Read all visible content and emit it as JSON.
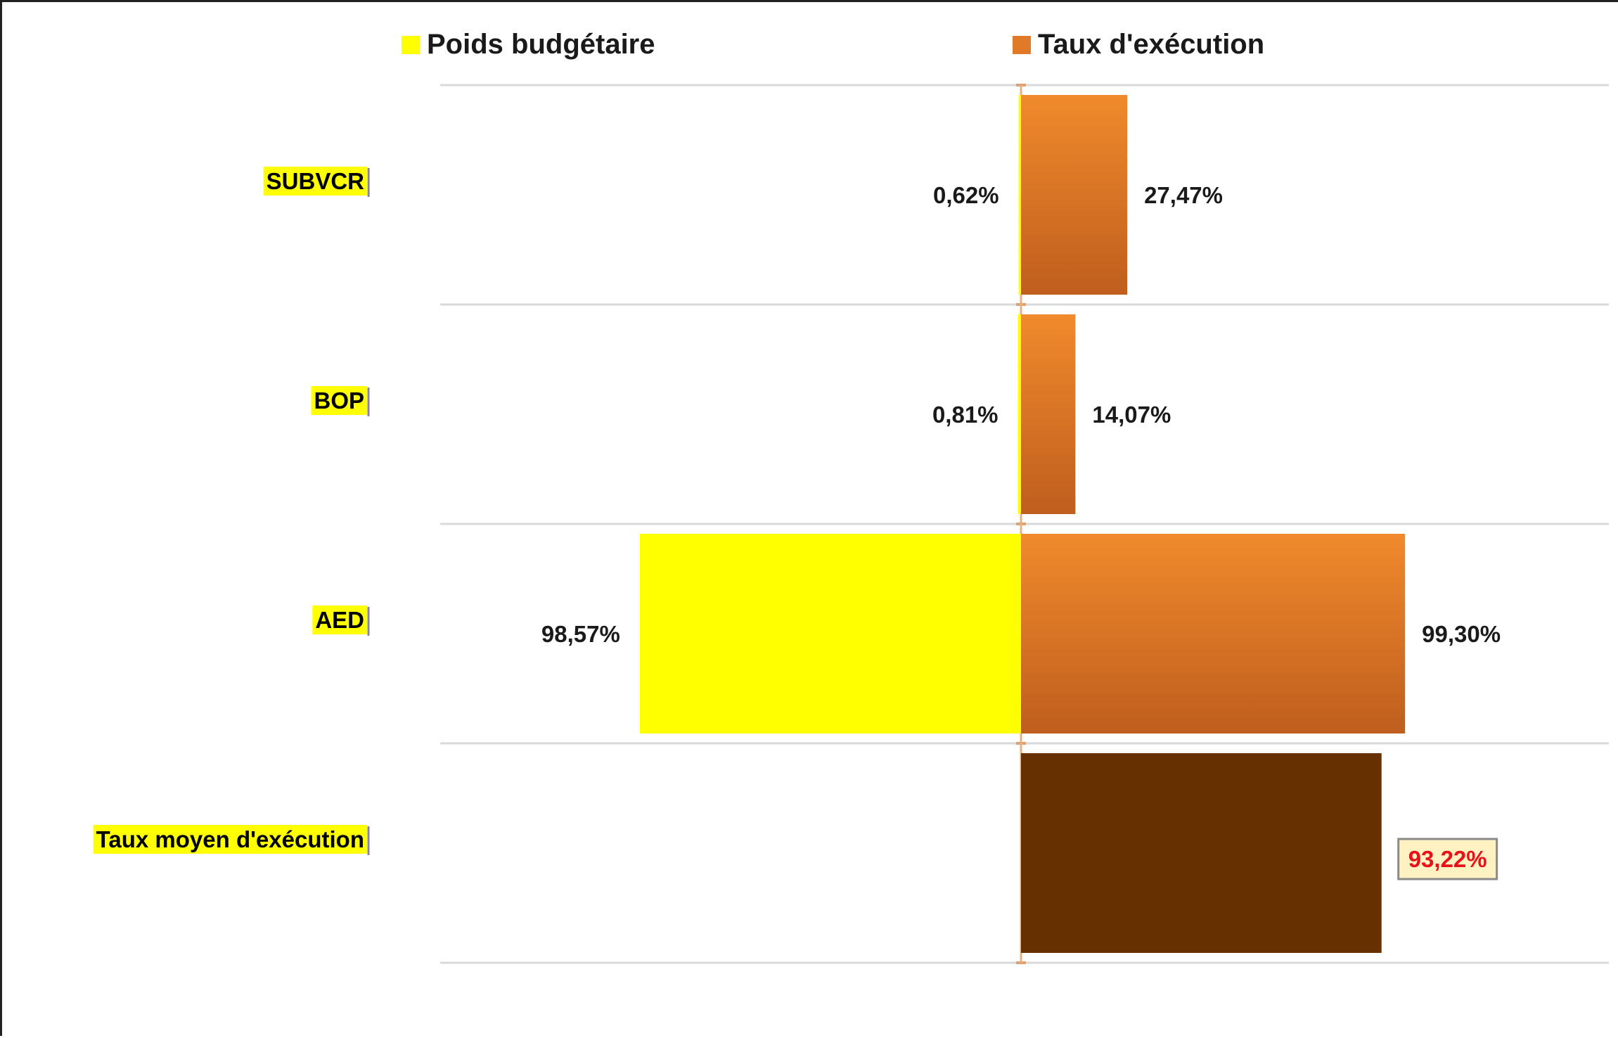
{
  "chart_data": {
    "type": "bar",
    "orientation": "horizontal",
    "categories": [
      "SUBVCR",
      "BOP",
      "AED",
      "Taux moyen d'exécution"
    ],
    "series": [
      {
        "name": "Poids budgétaire",
        "values": [
          0.62,
          0.81,
          98.57,
          null
        ],
        "labels": [
          "0,62%",
          "0,81%",
          "98,57%",
          ""
        ],
        "color": "#FFFF00"
      },
      {
        "name": "Taux d'exécution",
        "values": [
          27.47,
          14.07,
          99.3,
          93.22
        ],
        "labels": [
          "27,47%",
          "14,07%",
          "99,30%",
          "93,22%"
        ],
        "color": "#E07A28",
        "highlight_color": "#663000"
      }
    ],
    "direction": "diverging",
    "legend_position": "top",
    "xlim": [
      -100,
      150
    ],
    "grid": "horizontal separators",
    "highlight_label_color": "#E8131A",
    "highlight_label_box": "#FFF2C2"
  }
}
